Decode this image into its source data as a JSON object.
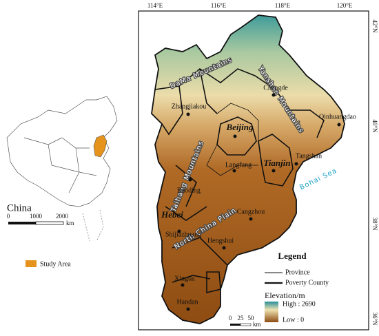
{
  "inset": {
    "title": "China",
    "scale": [
      "0",
      "1000",
      "2000"
    ],
    "scale_unit": "km",
    "legend": "Study Area"
  },
  "map": {
    "longitudes": [
      "114°E",
      "116°E",
      "118°E",
      "120°E"
    ],
    "latitudes": [
      "42°N",
      "40°N",
      "38°N",
      "36°N"
    ],
    "regions": [
      "DaMa Mountains",
      "Yanshan Mountains",
      "Taihang Mountains",
      "North China Plain",
      "Bohai Sea"
    ],
    "provinces": [
      "Beijing",
      "Tianjin",
      "Hebei"
    ],
    "cities": [
      "Chengde",
      "Zhangjiakou",
      "Qinhuangdao",
      "Langfang",
      "Tangshan",
      "Baoding",
      "Cangzhou",
      "Shijiazhuang",
      "Hengshui",
      "Xingtai",
      "Handan"
    ],
    "scale": [
      "0",
      "25",
      "50"
    ],
    "scale_unit": "km"
  },
  "legend": {
    "title": "Legend",
    "province": "Province",
    "county": "Poverty County",
    "elevation_title": "Elevation/m",
    "high": "High : 2690",
    "low": "Low : 0"
  }
}
